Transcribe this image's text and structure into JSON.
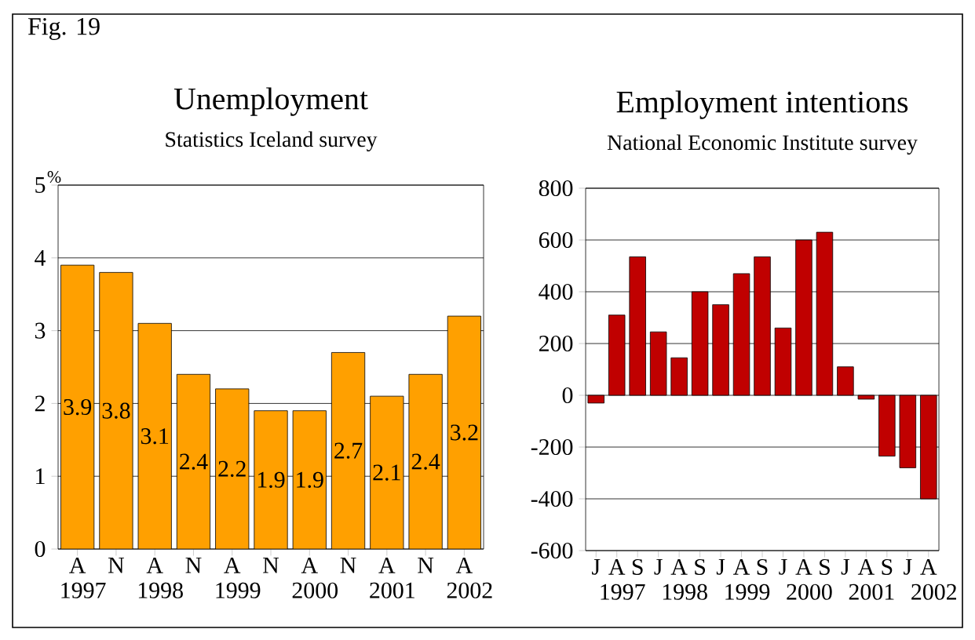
{
  "chart_data": [
    {
      "type": "bar",
      "title": "Unemployment",
      "subtitle": "Statistics Iceland survey",
      "ylabel": "%",
      "annotations": [
        "Fig. 19"
      ],
      "categories": [
        "A 1997",
        "N",
        "A 1998",
        "N",
        "A 1999",
        "N",
        "A 2000",
        "N",
        "A 2001",
        "N",
        "A 2002"
      ],
      "values": [
        3.9,
        3.8,
        3.1,
        2.4,
        2.2,
        1.9,
        1.9,
        2.7,
        2.1,
        2.4,
        3.2
      ],
      "color": "#ffa000",
      "ylim": [
        0,
        5
      ],
      "yticks": [
        0,
        1,
        2,
        3,
        4,
        5
      ],
      "grid": "y",
      "data_labels": true
    },
    {
      "type": "bar",
      "title": "Employment intentions",
      "subtitle": "National Economic Institute survey",
      "categories": [
        "J",
        "A 1997",
        "S",
        "J",
        "A 1998",
        "S",
        "J",
        "A 1999",
        "S",
        "J",
        "A 2000",
        "S",
        "J",
        "A 2001",
        "S",
        "J",
        "A 2002"
      ],
      "values": [
        -30,
        310,
        535,
        245,
        145,
        400,
        350,
        470,
        535,
        260,
        600,
        630,
        110,
        -15,
        -235,
        -280,
        -400
      ],
      "color": "#c00000",
      "ylim": [
        -600,
        800
      ],
      "yticks": [
        -600,
        -400,
        -200,
        0,
        200,
        400,
        600,
        800
      ],
      "grid": "y"
    }
  ]
}
